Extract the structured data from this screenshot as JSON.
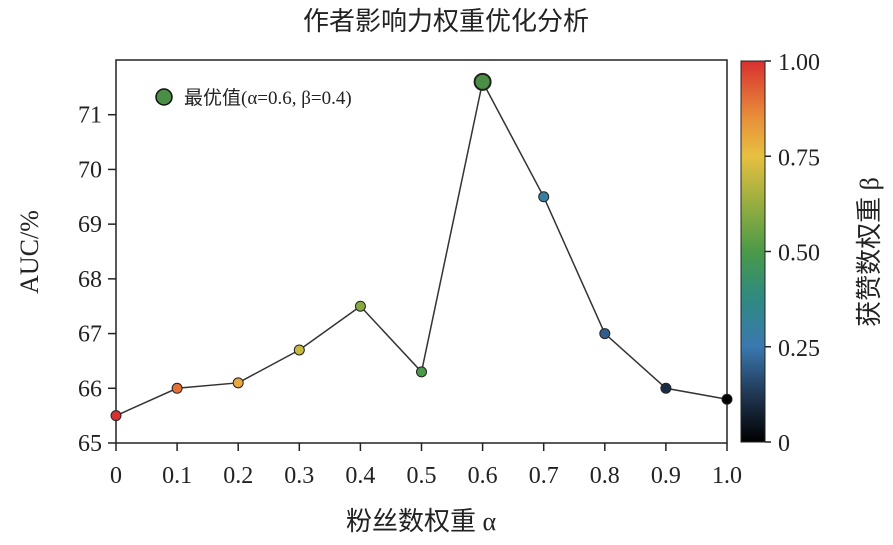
{
  "chart_data": {
    "type": "line",
    "title": "作者影响力权重优化分析",
    "xlabel": "粉丝数权重 α",
    "ylabel": "AUC/%",
    "x": [
      0,
      0.1,
      0.2,
      0.3,
      0.4,
      0.5,
      0.6,
      0.7,
      0.8,
      0.9,
      1.0
    ],
    "x_tick_labels": [
      "0",
      "0.1",
      "0.2",
      "0.3",
      "0.4",
      "0.5",
      "0.6",
      "0.7",
      "0.8",
      "0.9",
      "1.0"
    ],
    "y": [
      65.5,
      66.0,
      66.1,
      66.7,
      67.5,
      66.3,
      71.6,
      69.5,
      67.0,
      66.0,
      65.8
    ],
    "color_values_beta": [
      1.0,
      0.9,
      0.8,
      0.7,
      0.6,
      0.5,
      0.4,
      0.3,
      0.2,
      0.1,
      0.0
    ],
    "y_ticks": [
      65,
      66,
      67,
      68,
      69,
      70,
      71
    ],
    "xlim": [
      0,
      1.0
    ],
    "ylim": [
      65,
      72
    ],
    "grid": false,
    "line_color": "#333333",
    "highlight": {
      "x": 0.6,
      "y": 71.6,
      "color": "#4a8f45"
    },
    "legend": {
      "label": "最优值(α=0.6, β=0.4)",
      "placement": "top-left"
    },
    "colorbar": {
      "label": "获赞数权重 β",
      "range": [
        0,
        1.0
      ],
      "ticks": [
        0,
        0.25,
        0.5,
        0.75,
        1.0
      ],
      "tick_labels": [
        "0",
        "0.25",
        "0.50",
        "0.75",
        "1.00"
      ],
      "colormap_stops": [
        {
          "v": 0.0,
          "c": "#000000"
        },
        {
          "v": 0.12,
          "c": "#1f3550"
        },
        {
          "v": 0.25,
          "c": "#3a78b0"
        },
        {
          "v": 0.38,
          "c": "#2f8a80"
        },
        {
          "v": 0.5,
          "c": "#4a9a48"
        },
        {
          "v": 0.63,
          "c": "#9aae40"
        },
        {
          "v": 0.75,
          "c": "#e6c040"
        },
        {
          "v": 0.85,
          "c": "#e8903a"
        },
        {
          "v": 1.0,
          "c": "#d83030"
        }
      ]
    }
  }
}
